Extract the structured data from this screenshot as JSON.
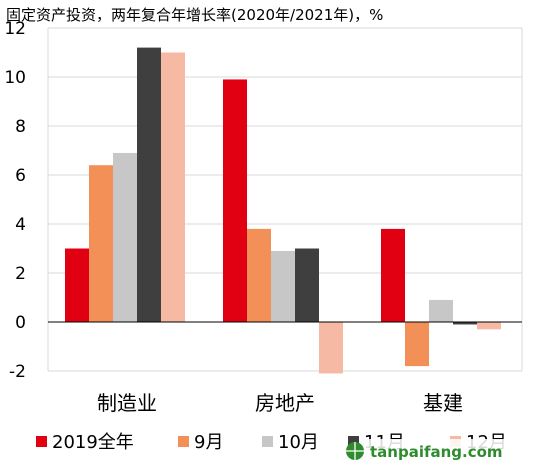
{
  "chart_data": {
    "type": "bar",
    "title": "固定资产投资，两年复合年增长率(2020年/2021年)，%",
    "xlabel": "",
    "ylabel": "",
    "categories": [
      "制造业",
      "房地产",
      "基建"
    ],
    "series": [
      {
        "name": "2019全年",
        "color": "#E00012",
        "values": [
          3.0,
          9.9,
          3.8
        ]
      },
      {
        "name": "9月",
        "color": "#F39057",
        "values": [
          6.4,
          3.8,
          -1.8
        ]
      },
      {
        "name": "10月",
        "color": "#C7C7C7",
        "values": [
          6.9,
          2.9,
          0.9
        ]
      },
      {
        "name": "11月",
        "color": "#3F3F3F",
        "values": [
          11.2,
          3.0,
          -0.1
        ]
      },
      {
        "name": "12月",
        "color": "#F6B9A3",
        "values": [
          11.0,
          -2.1,
          -0.3
        ]
      }
    ],
    "ylim": [
      -2,
      12
    ],
    "yticks": [
      "12",
      "10",
      "8",
      "6",
      "4",
      "2",
      "0",
      "-2"
    ],
    "grid": true,
    "legend_position": "bottom"
  },
  "watermark": {
    "text": "tanpaifang.com",
    "icon": "globe-icon"
  }
}
